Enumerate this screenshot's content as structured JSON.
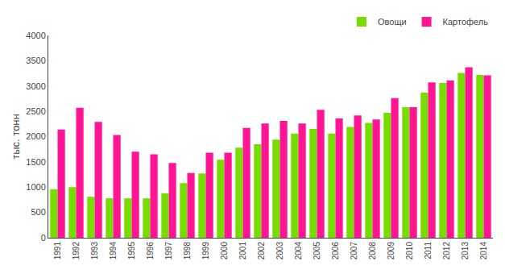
{
  "chart_data": {
    "type": "bar",
    "categories": [
      "1991",
      "1992",
      "1993",
      "1994",
      "1995",
      "1996",
      "1997",
      "1998",
      "1999",
      "2000",
      "2001",
      "2002",
      "2003",
      "2004",
      "2005",
      "2006",
      "2007",
      "2008",
      "2009",
      "2010",
      "2011",
      "2012",
      "2013",
      "2014"
    ],
    "series": [
      {
        "name": "Овощи",
        "color": "#77DD00",
        "values": [
          960,
          1000,
          810,
          780,
          780,
          780,
          880,
          1080,
          1270,
          1540,
          1780,
          1850,
          1940,
          2060,
          2150,
          2060,
          2190,
          2270,
          2470,
          2580,
          2870,
          3060,
          3260,
          3220
        ]
      },
      {
        "name": "Картофель",
        "color": "#FF1493",
        "values": [
          2140,
          2570,
          2290,
          2030,
          1700,
          1650,
          1480,
          1280,
          1680,
          1680,
          2170,
          2260,
          2310,
          2260,
          2530,
          2360,
          2420,
          2340,
          2760,
          2580,
          3070,
          3110,
          3370,
          3210
        ]
      }
    ],
    "ylabel": "тыс. тонн",
    "ylim": [
      0,
      4000
    ],
    "yticks": [
      0,
      500,
      1000,
      1500,
      2000,
      2500,
      3000,
      3500,
      4000
    ],
    "grid": false,
    "legend": "upper right"
  }
}
